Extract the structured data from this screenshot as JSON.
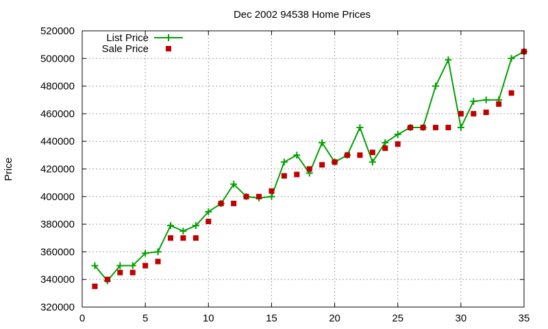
{
  "chart_data": {
    "type": "line",
    "title": "Dec 2002 94538 Home Prices",
    "xlabel": "",
    "ylabel": "Price",
    "xlim": [
      0,
      35
    ],
    "ylim": [
      320000,
      520000
    ],
    "xticks": [
      0,
      5,
      10,
      15,
      20,
      25,
      30,
      35
    ],
    "yticks": [
      320000,
      340000,
      360000,
      380000,
      400000,
      420000,
      440000,
      460000,
      480000,
      500000,
      520000
    ],
    "grid": true,
    "legend_position": "top-left",
    "series": [
      {
        "name": "List Price",
        "style": "line-plus",
        "color": "#00a000",
        "x": [
          1,
          2,
          3,
          4,
          5,
          6,
          7,
          8,
          9,
          10,
          11,
          12,
          13,
          14,
          15,
          16,
          17,
          18,
          19,
          20,
          21,
          22,
          23,
          24,
          25,
          26,
          27,
          28,
          29,
          30,
          31,
          32,
          33,
          34,
          35
        ],
        "values": [
          350000,
          339000,
          350000,
          350000,
          359000,
          360000,
          379000,
          375000,
          379000,
          389000,
          395000,
          409000,
          400000,
          399000,
          400000,
          425000,
          430000,
          417000,
          439000,
          425000,
          430000,
          450000,
          425000,
          439000,
          445000,
          450000,
          450000,
          480000,
          499000,
          450000,
          469000,
          470000,
          470000,
          500000,
          505000
        ]
      },
      {
        "name": "Sale Price",
        "style": "square",
        "color": "#c00000",
        "x": [
          1,
          2,
          3,
          4,
          5,
          6,
          7,
          8,
          9,
          10,
          11,
          12,
          13,
          14,
          15,
          16,
          17,
          18,
          19,
          20,
          21,
          22,
          23,
          24,
          25,
          26,
          27,
          28,
          29,
          30,
          31,
          32,
          33,
          34,
          35
        ],
        "values": [
          335000,
          340000,
          345000,
          345000,
          350000,
          353000,
          370000,
          370000,
          370000,
          382000,
          395000,
          395000,
          400000,
          400000,
          404000,
          415000,
          416000,
          420000,
          423000,
          425000,
          430000,
          430000,
          432000,
          435000,
          438000,
          450000,
          450000,
          450000,
          450000,
          460000,
          460000,
          461000,
          467000,
          475000,
          505000
        ]
      }
    ]
  }
}
